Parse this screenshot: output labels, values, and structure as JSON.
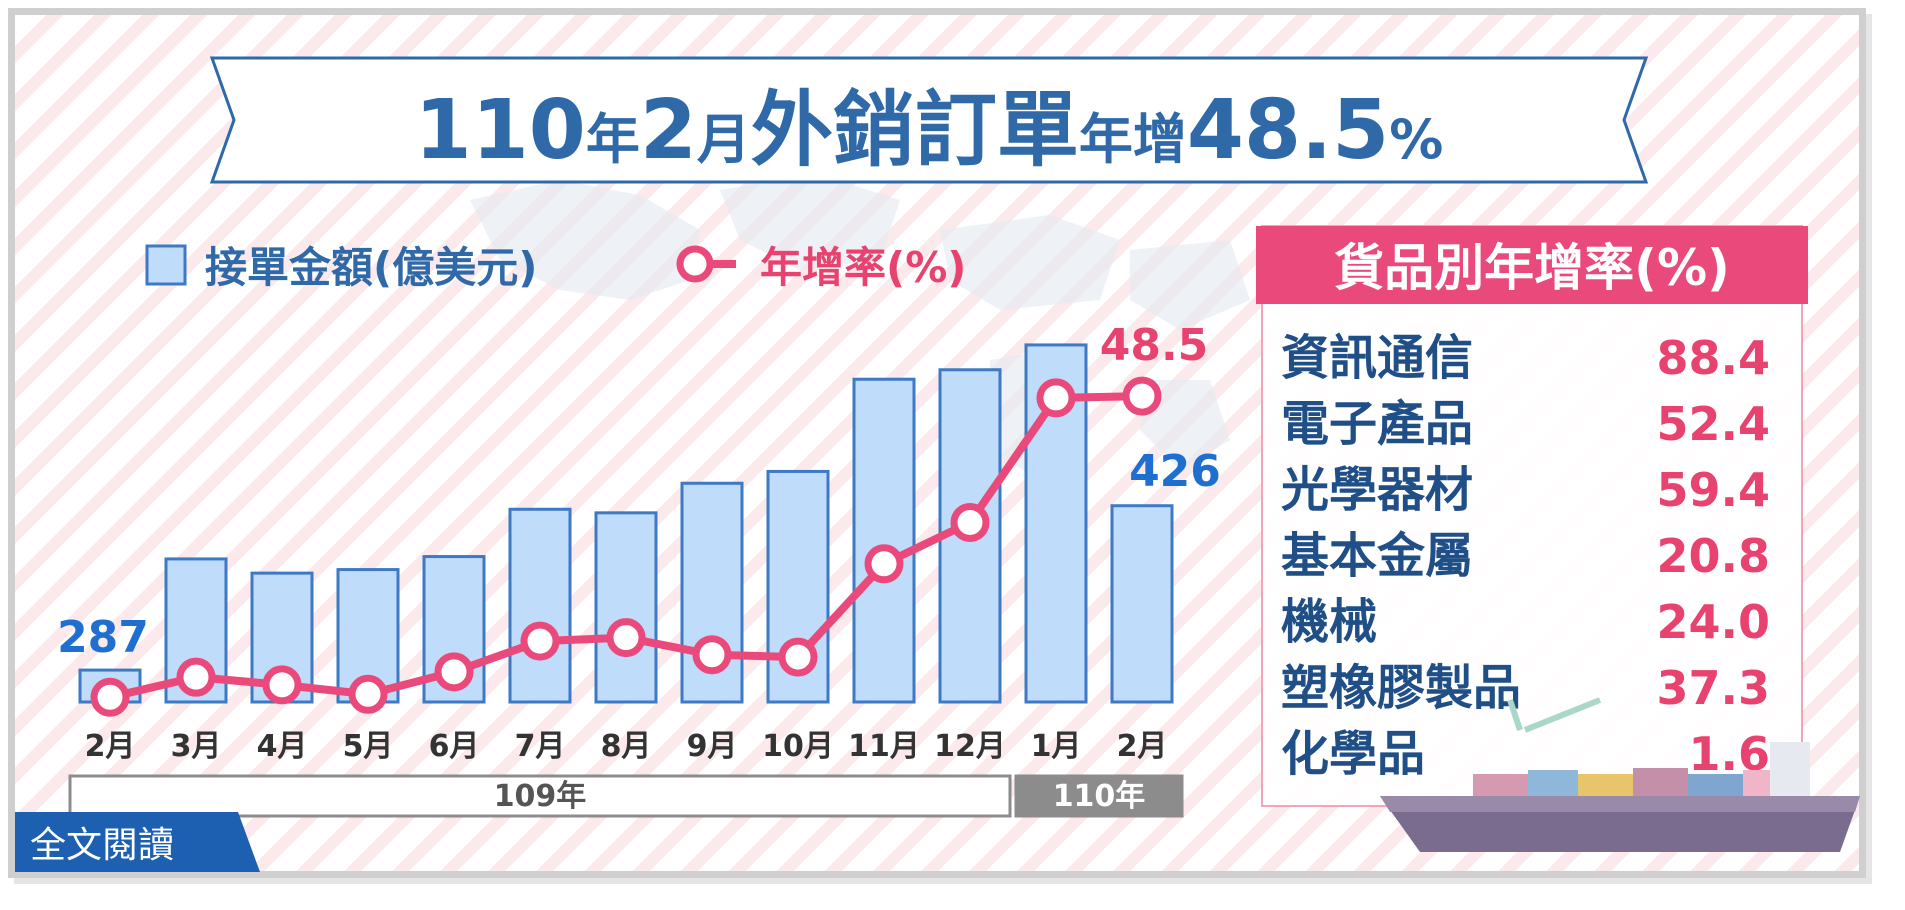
{
  "title": {
    "part1": "110",
    "part2": "年",
    "part3": "2",
    "part4": "月",
    "part5": "外銷訂單",
    "part6": "年增",
    "part7": "48.5",
    "part8": "%"
  },
  "legend": {
    "bar_label": "接單金額(億美元)",
    "line_label": "年增率(%)"
  },
  "colors": {
    "bar_fill": "#bfdcfa",
    "bar_stroke": "#3d79c4",
    "line": "#e94a7b",
    "title_blue": "#2f69a8",
    "value_blue": "#1f6fd1",
    "value_red": "#e8426e",
    "panel_header": "#e94a7b",
    "product_name": "#1f4f86"
  },
  "chart_data": {
    "type": "bar",
    "categories": [
      "2月",
      "3月",
      "4月",
      "5月",
      "6月",
      "7月",
      "8月",
      "9月",
      "10月",
      "11月",
      "12月",
      "1月",
      "2月"
    ],
    "series": [
      {
        "name": "接單金額(億美元)",
        "type": "bar",
        "values": [
          287,
          381,
          369,
          372,
          383,
          423,
          420,
          445,
          455,
          533,
          541,
          562,
          426
        ]
      },
      {
        "name": "年增率(%)",
        "type": "line",
        "values": [
          -2.5,
          0.9,
          -0.4,
          -2.0,
          1.8,
          7.0,
          7.6,
          4.7,
          4.3,
          20.1,
          27.1,
          48.2,
          48.5
        ]
      }
    ],
    "bar_ylim": [
      260,
      600
    ],
    "line_ylim": [
      -5,
      58
    ],
    "data_labels": [
      {
        "text": "287",
        "series": 0,
        "index": 0
      },
      {
        "text": "426",
        "series": 0,
        "index": 12
      },
      {
        "text": "48.5",
        "series": 1,
        "index": 12
      }
    ],
    "year_groups": [
      {
        "label": "109年",
        "from": 0,
        "to": 10
      },
      {
        "label": "110年",
        "from": 11,
        "to": 12
      }
    ]
  },
  "panel": {
    "header": "貨品別年增率(%)",
    "items": [
      {
        "name": "資訊通信",
        "value": "88.4"
      },
      {
        "name": "電子產品",
        "value": "52.4"
      },
      {
        "name": "光學器材",
        "value": "59.4"
      },
      {
        "name": "基本金屬",
        "value": "20.8"
      },
      {
        "name": "機械",
        "value": "24.0"
      },
      {
        "name": "塑橡膠製品",
        "value": "37.3"
      },
      {
        "name": "化學品",
        "value": "1.6"
      }
    ]
  },
  "read_more": {
    "label": "全文閱讀"
  }
}
